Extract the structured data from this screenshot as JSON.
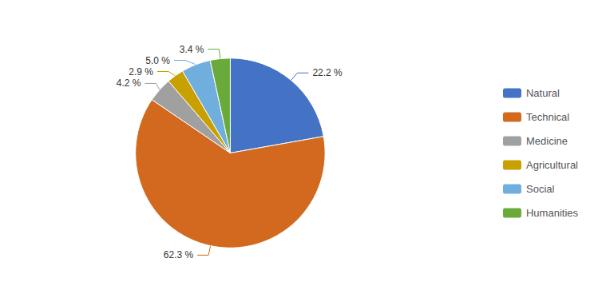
{
  "chart_data": {
    "type": "pie",
    "categories": [
      "Natural",
      "Technical",
      "Medicine",
      "Agricultural",
      "Social",
      "Humanities"
    ],
    "values": [
      22.2,
      62.3,
      4.2,
      2.9,
      5.0,
      3.4
    ],
    "value_labels": [
      "22.2 %",
      "62.3 %",
      "4.2 %",
      "2.9 %",
      "5.0 %",
      "3.4 %"
    ],
    "colors": [
      "#4472C4",
      "#D2691E",
      "#A0A0A0",
      "#C8A000",
      "#70AEDE",
      "#6AAA3A"
    ],
    "data_labels": true,
    "legend": "right"
  }
}
